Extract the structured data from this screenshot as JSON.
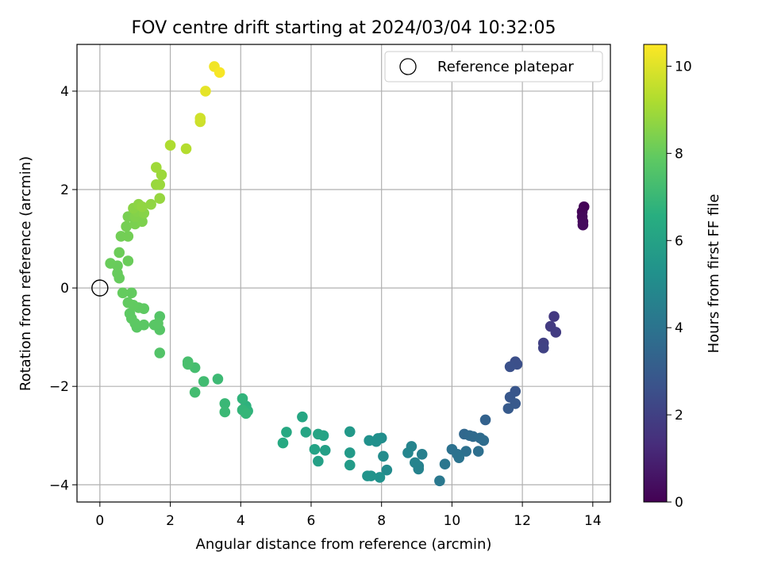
{
  "chart_data": {
    "type": "scatter",
    "title": "FOV centre drift starting at 2024/03/04 10:32:05",
    "xlabel": "Angular distance from reference (arcmin)",
    "ylabel": "Rotation from reference (arcmin)",
    "xlim": [
      -0.65,
      14.5
    ],
    "ylim": [
      -4.35,
      4.95
    ],
    "xticks": [
      0,
      2,
      4,
      6,
      8,
      10,
      12,
      14
    ],
    "yticks": [
      -4,
      -2,
      0,
      2,
      4
    ],
    "grid": true,
    "legend": {
      "position": "top-right",
      "entries": [
        "Reference platepar"
      ]
    },
    "reference_point": {
      "x": 0,
      "y": 0,
      "label": "Reference platepar"
    },
    "colorbar": {
      "label": "Hours from first FF file",
      "range": [
        0,
        10.5
      ],
      "ticks": [
        0,
        2,
        4,
        6,
        8,
        10
      ],
      "colormap": "viridis"
    },
    "points": [
      {
        "x": 13.75,
        "y": 1.65,
        "c": 0.1
      },
      {
        "x": 13.7,
        "y": 1.55,
        "c": 0.15
      },
      {
        "x": 13.7,
        "y": 1.45,
        "c": 0.2
      },
      {
        "x": 13.72,
        "y": 1.35,
        "c": 0.25
      },
      {
        "x": 13.72,
        "y": 1.28,
        "c": 0.3
      },
      {
        "x": 12.9,
        "y": -0.58,
        "c": 1.7
      },
      {
        "x": 12.8,
        "y": -0.78,
        "c": 1.8
      },
      {
        "x": 12.95,
        "y": -0.9,
        "c": 1.85
      },
      {
        "x": 12.6,
        "y": -1.12,
        "c": 2.0
      },
      {
        "x": 12.6,
        "y": -1.22,
        "c": 2.05
      },
      {
        "x": 11.8,
        "y": -1.5,
        "c": 2.5
      },
      {
        "x": 11.85,
        "y": -1.55,
        "c": 2.55
      },
      {
        "x": 11.65,
        "y": -1.6,
        "c": 2.6
      },
      {
        "x": 11.8,
        "y": -2.1,
        "c": 2.8
      },
      {
        "x": 11.65,
        "y": -2.22,
        "c": 2.85
      },
      {
        "x": 11.8,
        "y": -2.35,
        "c": 2.9
      },
      {
        "x": 11.6,
        "y": -2.45,
        "c": 2.95
      },
      {
        "x": 10.95,
        "y": -2.68,
        "c": 3.3
      },
      {
        "x": 10.35,
        "y": -2.97,
        "c": 3.5
      },
      {
        "x": 10.5,
        "y": -3.0,
        "c": 3.55
      },
      {
        "x": 10.6,
        "y": -3.02,
        "c": 3.6
      },
      {
        "x": 10.8,
        "y": -3.05,
        "c": 3.65
      },
      {
        "x": 10.9,
        "y": -3.1,
        "c": 3.7
      },
      {
        "x": 10.75,
        "y": -3.32,
        "c": 3.8
      },
      {
        "x": 10.4,
        "y": -3.32,
        "c": 3.85
      },
      {
        "x": 10.0,
        "y": -3.28,
        "c": 3.9
      },
      {
        "x": 10.15,
        "y": -3.38,
        "c": 3.95
      },
      {
        "x": 10.2,
        "y": -3.45,
        "c": 4.0
      },
      {
        "x": 9.8,
        "y": -3.58,
        "c": 4.1
      },
      {
        "x": 9.65,
        "y": -3.92,
        "c": 4.2
      },
      {
        "x": 9.15,
        "y": -3.38,
        "c": 4.5
      },
      {
        "x": 9.05,
        "y": -3.62,
        "c": 4.55
      },
      {
        "x": 9.05,
        "y": -3.68,
        "c": 4.6
      },
      {
        "x": 8.95,
        "y": -3.55,
        "c": 4.65
      },
      {
        "x": 8.85,
        "y": -3.22,
        "c": 4.7
      },
      {
        "x": 8.75,
        "y": -3.35,
        "c": 4.75
      },
      {
        "x": 8.15,
        "y": -3.7,
        "c": 5.0
      },
      {
        "x": 8.05,
        "y": -3.42,
        "c": 5.05
      },
      {
        "x": 8.0,
        "y": -3.05,
        "c": 5.1
      },
      {
        "x": 7.85,
        "y": -3.12,
        "c": 5.15
      },
      {
        "x": 7.9,
        "y": -3.06,
        "c": 5.2
      },
      {
        "x": 7.65,
        "y": -3.1,
        "c": 5.25
      },
      {
        "x": 7.95,
        "y": -3.85,
        "c": 5.3
      },
      {
        "x": 7.7,
        "y": -3.82,
        "c": 5.35
      },
      {
        "x": 7.6,
        "y": -3.82,
        "c": 5.4
      },
      {
        "x": 7.1,
        "y": -2.92,
        "c": 5.6
      },
      {
        "x": 7.1,
        "y": -3.35,
        "c": 5.65
      },
      {
        "x": 7.1,
        "y": -3.6,
        "c": 5.7
      },
      {
        "x": 6.4,
        "y": -3.3,
        "c": 5.9
      },
      {
        "x": 6.2,
        "y": -3.52,
        "c": 5.95
      },
      {
        "x": 6.1,
        "y": -3.28,
        "c": 6.0
      },
      {
        "x": 6.35,
        "y": -3.0,
        "c": 6.05
      },
      {
        "x": 6.2,
        "y": -2.97,
        "c": 6.1
      },
      {
        "x": 5.85,
        "y": -2.93,
        "c": 6.15
      },
      {
        "x": 5.75,
        "y": -2.62,
        "c": 6.2
      },
      {
        "x": 5.3,
        "y": -2.93,
        "c": 6.3
      },
      {
        "x": 5.2,
        "y": -3.15,
        "c": 6.35
      },
      {
        "x": 4.15,
        "y": -2.4,
        "c": 6.7
      },
      {
        "x": 4.2,
        "y": -2.5,
        "c": 6.75
      },
      {
        "x": 4.05,
        "y": -2.25,
        "c": 6.8
      },
      {
        "x": 4.05,
        "y": -2.48,
        "c": 6.85
      },
      {
        "x": 4.15,
        "y": -2.55,
        "c": 6.9
      },
      {
        "x": 3.55,
        "y": -2.35,
        "c": 7.0
      },
      {
        "x": 3.55,
        "y": -2.52,
        "c": 7.05
      },
      {
        "x": 3.35,
        "y": -1.85,
        "c": 7.1
      },
      {
        "x": 2.95,
        "y": -1.9,
        "c": 7.2
      },
      {
        "x": 2.7,
        "y": -2.12,
        "c": 7.25
      },
      {
        "x": 2.7,
        "y": -1.62,
        "c": 7.3
      },
      {
        "x": 2.5,
        "y": -1.5,
        "c": 7.35
      },
      {
        "x": 2.5,
        "y": -1.55,
        "c": 7.4
      },
      {
        "x": 1.7,
        "y": -1.32,
        "c": 7.6
      },
      {
        "x": 1.7,
        "y": -0.58,
        "c": 7.65
      },
      {
        "x": 1.7,
        "y": -0.85,
        "c": 7.7
      },
      {
        "x": 1.55,
        "y": -0.75,
        "c": 7.75
      },
      {
        "x": 1.65,
        "y": -0.72,
        "c": 7.75
      },
      {
        "x": 1.25,
        "y": -0.75,
        "c": 7.8
      },
      {
        "x": 1.05,
        "y": -0.8,
        "c": 7.8
      },
      {
        "x": 1.0,
        "y": -0.72,
        "c": 7.82
      },
      {
        "x": 0.9,
        "y": -0.62,
        "c": 7.84
      },
      {
        "x": 0.85,
        "y": -0.52,
        "c": 7.86
      },
      {
        "x": 1.25,
        "y": -0.42,
        "c": 7.88
      },
      {
        "x": 1.1,
        "y": -0.4,
        "c": 7.9
      },
      {
        "x": 0.95,
        "y": -0.35,
        "c": 7.92
      },
      {
        "x": 0.8,
        "y": -0.3,
        "c": 7.94
      },
      {
        "x": 0.9,
        "y": -0.1,
        "c": 7.96
      },
      {
        "x": 0.65,
        "y": -0.1,
        "c": 7.98
      },
      {
        "x": 0.55,
        "y": 0.2,
        "c": 8.0
      },
      {
        "x": 0.5,
        "y": 0.3,
        "c": 8.02
      },
      {
        "x": 0.5,
        "y": 0.45,
        "c": 8.04
      },
      {
        "x": 0.3,
        "y": 0.5,
        "c": 8.06
      },
      {
        "x": 0.8,
        "y": 0.55,
        "c": 8.08
      },
      {
        "x": 0.55,
        "y": 0.72,
        "c": 8.1
      },
      {
        "x": 0.6,
        "y": 1.05,
        "c": 8.2
      },
      {
        "x": 0.8,
        "y": 1.05,
        "c": 8.22
      },
      {
        "x": 0.75,
        "y": 1.25,
        "c": 8.25
      },
      {
        "x": 0.8,
        "y": 1.45,
        "c": 8.3
      },
      {
        "x": 1.0,
        "y": 1.3,
        "c": 8.35
      },
      {
        "x": 1.2,
        "y": 1.35,
        "c": 8.4
      },
      {
        "x": 1.0,
        "y": 1.45,
        "c": 8.45
      },
      {
        "x": 1.05,
        "y": 1.55,
        "c": 8.5
      },
      {
        "x": 1.25,
        "y": 1.52,
        "c": 8.55
      },
      {
        "x": 0.95,
        "y": 1.62,
        "c": 8.6
      },
      {
        "x": 1.1,
        "y": 1.7,
        "c": 8.65
      },
      {
        "x": 1.45,
        "y": 1.7,
        "c": 8.7
      },
      {
        "x": 1.2,
        "y": 1.65,
        "c": 8.72
      },
      {
        "x": 1.7,
        "y": 1.82,
        "c": 8.8
      },
      {
        "x": 1.6,
        "y": 2.1,
        "c": 8.85
      },
      {
        "x": 1.7,
        "y": 2.1,
        "c": 8.88
      },
      {
        "x": 1.75,
        "y": 2.3,
        "c": 8.9
      },
      {
        "x": 1.6,
        "y": 2.45,
        "c": 8.95
      },
      {
        "x": 2.0,
        "y": 2.9,
        "c": 9.2
      },
      {
        "x": 2.45,
        "y": 2.83,
        "c": 9.3
      },
      {
        "x": 2.85,
        "y": 3.38,
        "c": 9.7
      },
      {
        "x": 2.85,
        "y": 3.45,
        "c": 9.75
      },
      {
        "x": 3.0,
        "y": 4.0,
        "c": 10.1
      },
      {
        "x": 3.25,
        "y": 4.5,
        "c": 10.3
      },
      {
        "x": 3.4,
        "y": 4.38,
        "c": 10.4
      }
    ]
  }
}
